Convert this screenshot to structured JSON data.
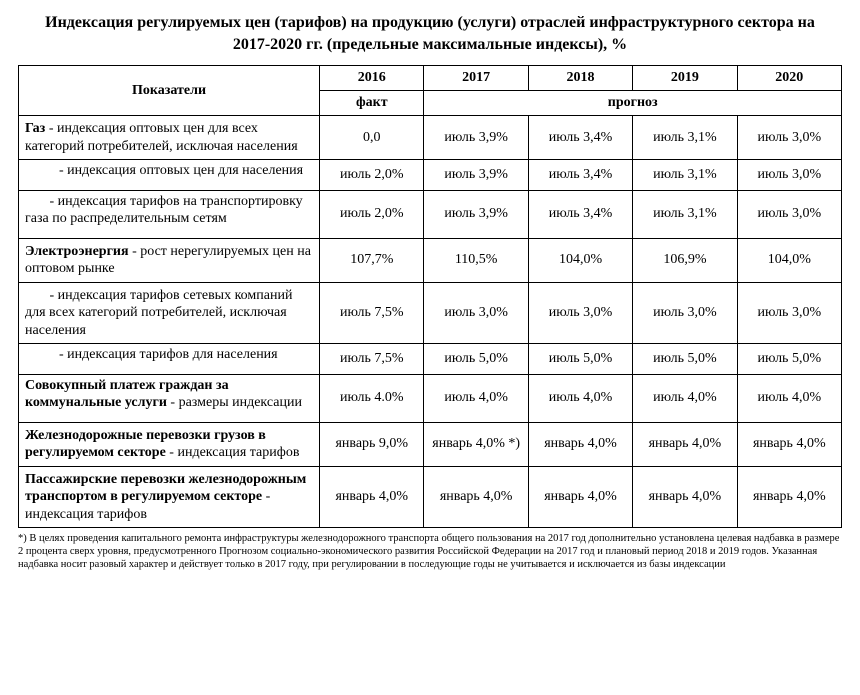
{
  "title": "Индексация  регулируемых цен (тарифов) на продукцию (услуги) отраслей  инфраструктурного сектора  на   2017-2020 гг. (предельные максимальные индексы), %",
  "header": {
    "indicators": "Показатели",
    "years": [
      "2016",
      "2017",
      "2018",
      "2019",
      "2020"
    ],
    "fact": "факт",
    "forecast": "прогноз"
  },
  "rows": [
    {
      "prefix": "Газ",
      "suffix": "  - индексация оптовых цен для всех категорий потребителей, исключая населения",
      "values": [
        "0,0",
        "июль 3,9%",
        "июль 3,4%",
        "июль 3,1%",
        "июль 3,0%"
      ]
    },
    {
      "indent": true,
      "text": "- индексация оптовых цен для населения",
      "values": [
        "июль 2,0%",
        "июль 3,9%",
        "июль 3,4%",
        "июль 3,1%",
        "июль 3,0%"
      ],
      "pad": "pad2"
    },
    {
      "indent": true,
      "text": "- индексация тарифов на транспортировку газа по распределительным сетям",
      "wrap": true,
      "values": [
        "июль 2,0%",
        "июль 3,9%",
        "июль 3,4%",
        "июль 3,1%",
        "июль 3,0%"
      ],
      "pad": "pad3"
    },
    {
      "prefix": "Электроэнергия",
      "suffix": " - рост нерегулируемых цен на оптовом рынке",
      "values": [
        "107,7%",
        "110,5%",
        "104,0%",
        "106,9%",
        "104,0%"
      ]
    },
    {
      "indent": true,
      "text": "- индексация тарифов сетевых компаний для  всех категорий потребителей, исключая населения",
      "wrap": true,
      "values": [
        "июль 7,5%",
        "июль 3,0%",
        "июль 3,0%",
        "июль 3,0%",
        "июль 3,0%"
      ]
    },
    {
      "indent": true,
      "text": "- индексация тарифов  для населения",
      "values": [
        "июль 7,5%",
        "июль 5,0%",
        "июль 5,0%",
        "июль 5,0%",
        "июль 5,0%"
      ],
      "pad": "pad2"
    },
    {
      "boldtext": "Совокупный платеж граждан за коммунальные услуги",
      "suffix": " - размеры индексации",
      "values": [
        "июль 4.0%",
        "июль 4,0%",
        "июль 4,0%",
        "июль 4,0%",
        "июль 4,0%"
      ],
      "pad": "pad3"
    },
    {
      "boldtext": "Железнодорожные перевозки грузов в регулируемом секторе",
      "suffix": " -  индексация тарифов",
      "values": [
        "январь 9,0%",
        "январь 4,0% *)",
        "январь 4,0%",
        "январь 4,0%",
        "январь 4,0%"
      ]
    },
    {
      "boldtext": "Пассажирские перевозки железнодорожным транспортом  в регулируемом секторе",
      "suffix": " - индексация тарифов",
      "values": [
        "январь 4,0%",
        "январь 4,0%",
        "январь 4,0%",
        "январь 4,0%",
        "январь 4,0%"
      ]
    }
  ],
  "footnote": "*) В целях проведения капитального ремонта инфраструктуры железнодорожного транспорта общего пользования на 2017 год дополнительно установлена целевая надбавка в размере 2 процента сверх уровня, предусмотренного  Прогнозом социально-экономического развития Российской Федерации на 2017 год и плановый период 2018 и 2019 годов. Указанная надбавка носит разовый характер и действует только в 2017 году, при регулировании в последующие годы не учитывается и исключается из базы индексации"
}
